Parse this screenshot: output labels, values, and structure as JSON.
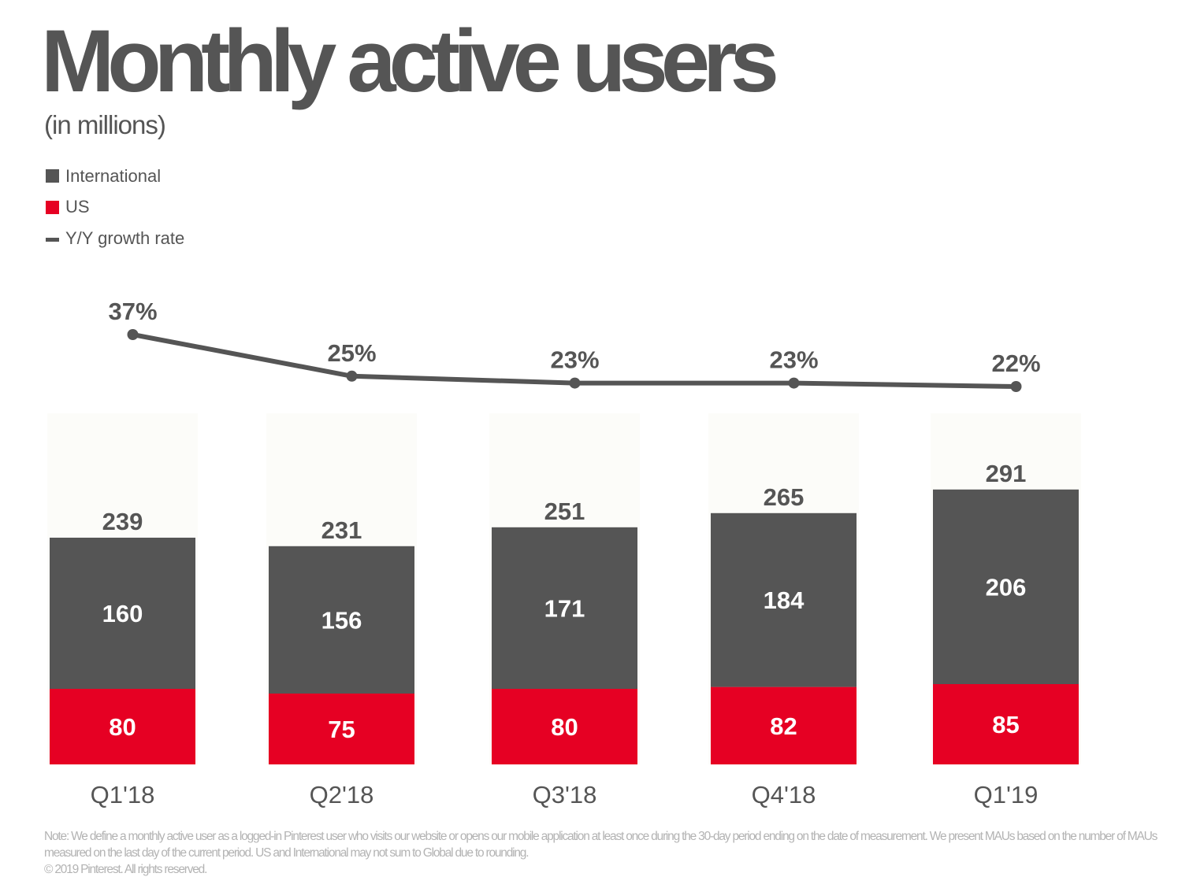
{
  "header": {
    "title": "Monthly active users",
    "subtitle": "(in millions)"
  },
  "legend": [
    {
      "label": "International",
      "color": "#555555",
      "shape": "square"
    },
    {
      "label": "US",
      "color": "#e60023",
      "shape": "square"
    },
    {
      "label": "Y/Y growth rate",
      "color": "#555555",
      "shape": "line"
    }
  ],
  "chart_data": {
    "type": "bar",
    "stacked": true,
    "categories": [
      "Q1'18",
      "Q2'18",
      "Q3'18",
      "Q4'18",
      "Q1'19"
    ],
    "series": [
      {
        "name": "US",
        "values": [
          80,
          75,
          80,
          82,
          85
        ],
        "color": "#e60023"
      },
      {
        "name": "International",
        "values": [
          160,
          156,
          171,
          184,
          206
        ],
        "color": "#555555"
      }
    ],
    "totals": [
      239,
      231,
      251,
      265,
      291
    ],
    "growth": {
      "name": "Y/Y growth rate",
      "values": [
        37,
        25,
        23,
        23,
        22
      ],
      "labels": [
        "37%",
        "25%",
        "23%",
        "23%",
        "22%"
      ],
      "color": "#555555"
    },
    "ylim": [
      0,
      300
    ],
    "title": "Monthly active users",
    "xlabel": "",
    "ylabel": "",
    "grid": false,
    "legend_position": "top-left"
  },
  "footer": {
    "note": "Note: We define a monthly active user as a logged-in Pinterest user who visits our website or opens our mobile application at least once during the 30-day period ending on the date of measurement. We present MAUs based on the number of MAUs measured on the last day of the current period. US and International may not sum to Global due to rounding.",
    "copyright": "© 2019 Pinterest. All rights reserved."
  }
}
